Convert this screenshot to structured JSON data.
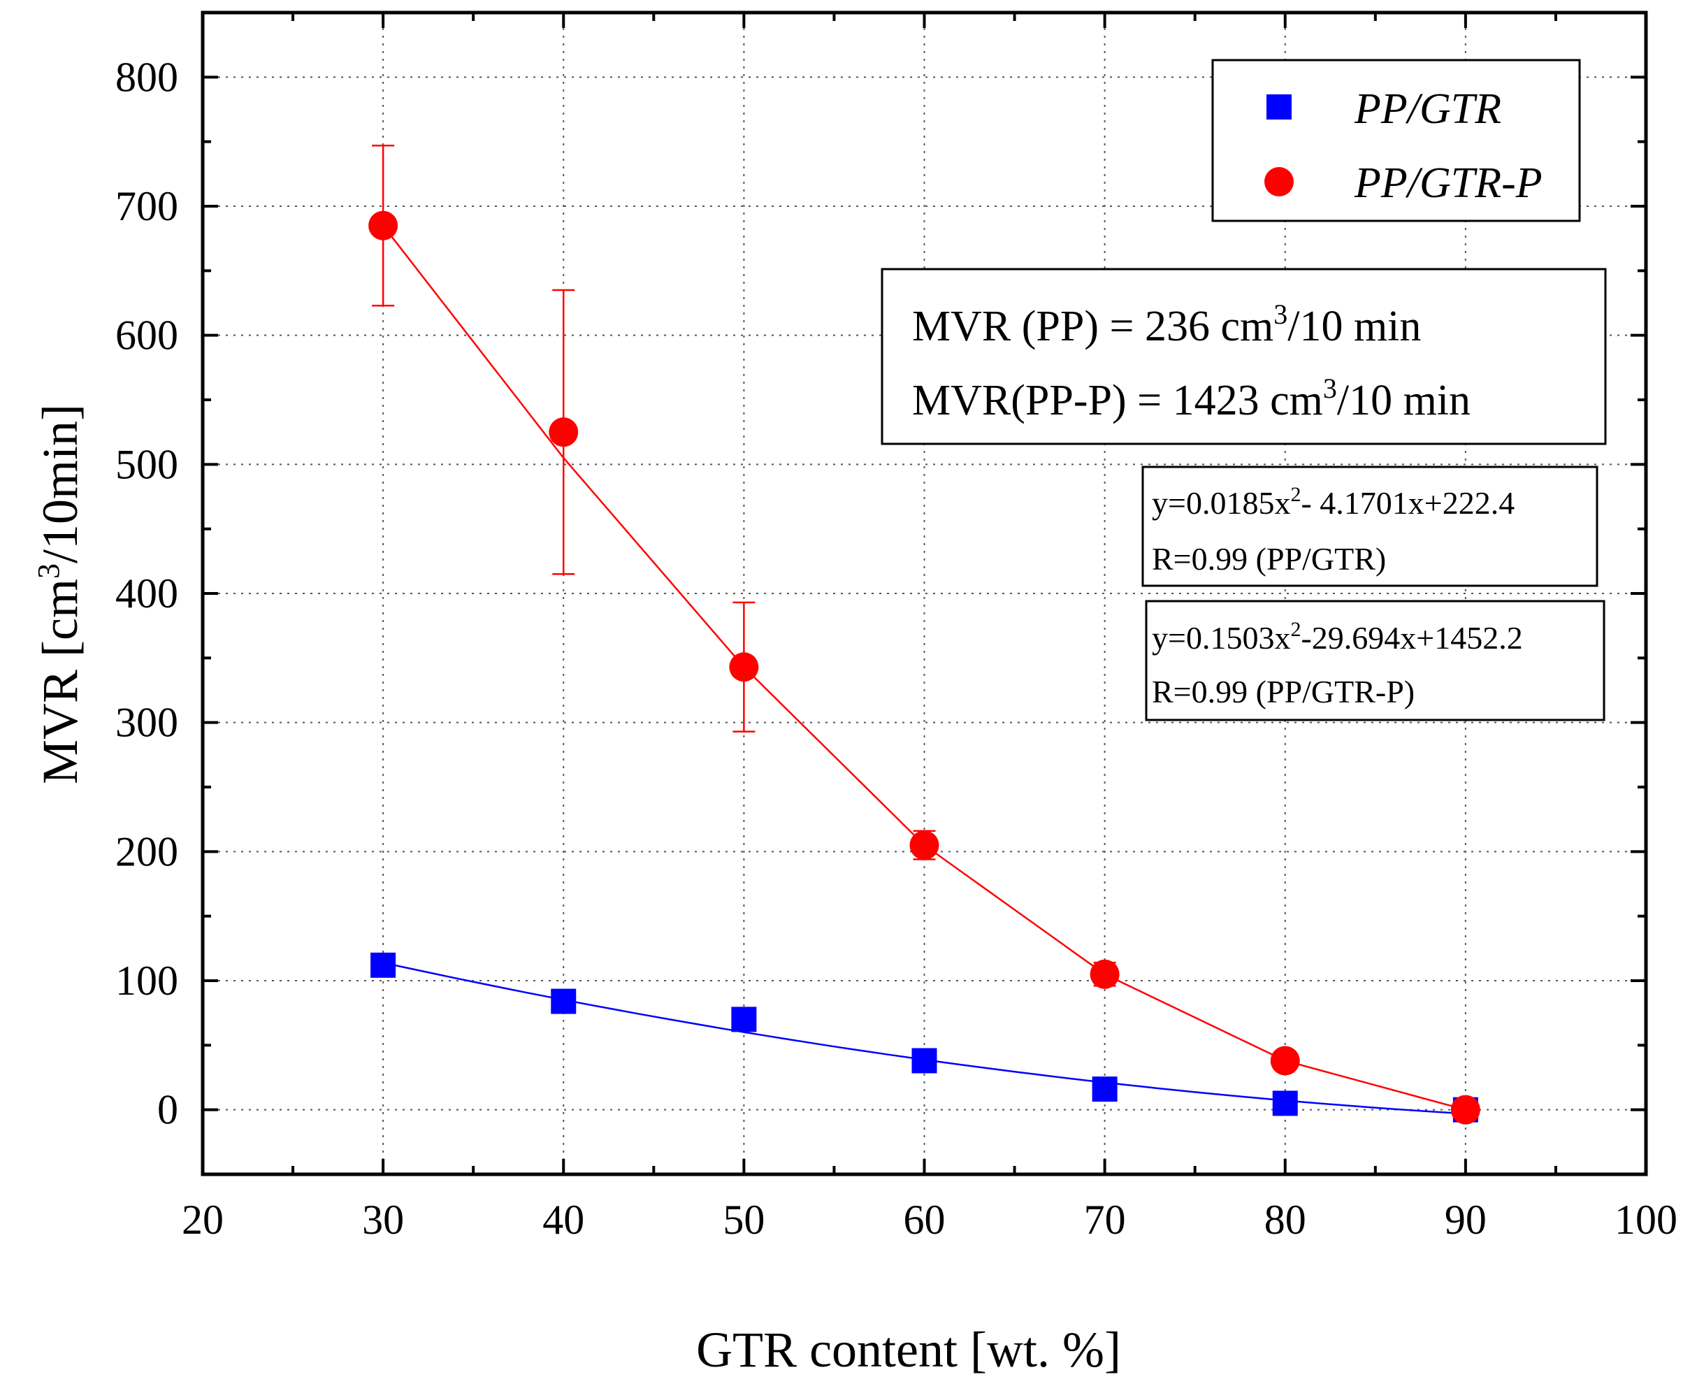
{
  "chart_data": {
    "type": "scatter",
    "xlabel": "GTR content [wt. %]",
    "ylabel": {
      "pre": "MVR [cm",
      "sup": "3",
      "post": "/10min]"
    },
    "xlim": [
      20,
      100
    ],
    "ylim": [
      -50,
      850
    ],
    "x_ticks": [
      20,
      30,
      40,
      50,
      60,
      70,
      80,
      90,
      100
    ],
    "y_ticks": [
      0,
      100,
      200,
      300,
      400,
      500,
      600,
      700,
      800
    ],
    "x_minor_step": 5,
    "y_minor_step": 50,
    "grid": true,
    "x": [
      30,
      40,
      50,
      60,
      70,
      80,
      90
    ],
    "series": [
      {
        "name": "PP/GTR",
        "marker": "square",
        "color": "#0000ff",
        "values": [
          112,
          84,
          70,
          38,
          16,
          5,
          0
        ],
        "errors": [
          0,
          0,
          0,
          0,
          0,
          0,
          0
        ],
        "fit": {
          "a": 0.0185,
          "b": -4.1701,
          "c": 222.4
        }
      },
      {
        "name": "PP/GTR-P",
        "marker": "circle",
        "color": "#ff0000",
        "values": [
          685,
          525,
          343,
          205,
          105,
          38,
          0
        ],
        "errors": [
          62,
          110,
          50,
          11,
          9,
          0,
          0
        ],
        "fit_points": [
          [
            30,
            685
          ],
          [
            40,
            505
          ],
          [
            50,
            343
          ],
          [
            60,
            205
          ],
          [
            70,
            105
          ],
          [
            80,
            38
          ],
          [
            90,
            0
          ]
        ]
      }
    ],
    "legend": {
      "placement": "top-right",
      "items": [
        {
          "label": "PP/GTR",
          "marker": "square",
          "color": "#0000ff"
        },
        {
          "label": "PP/GTR-P",
          "marker": "circle",
          "color": "#ff0000"
        }
      ]
    },
    "annotations": {
      "mvr_pp": {
        "pre": "MVR (PP) = 236 cm",
        "sup": "3",
        "post": "/10 min"
      },
      "mvr_ppp": {
        "pre": "MVR(PP-P) = 1423 cm",
        "sup": "3",
        "post": "/10 min"
      },
      "eq1": {
        "pre": "y=0.0185x",
        "sup": "2",
        "post": "- 4.1701x+222.4"
      },
      "eq1_r": "R=0.99 (PP/GTR)",
      "eq2": {
        "pre": "y=0.1503x",
        "sup": "2",
        "post": "-29.694x+1452.2"
      },
      "eq2_r": "R=0.99 (PP/GTR-P)"
    }
  }
}
